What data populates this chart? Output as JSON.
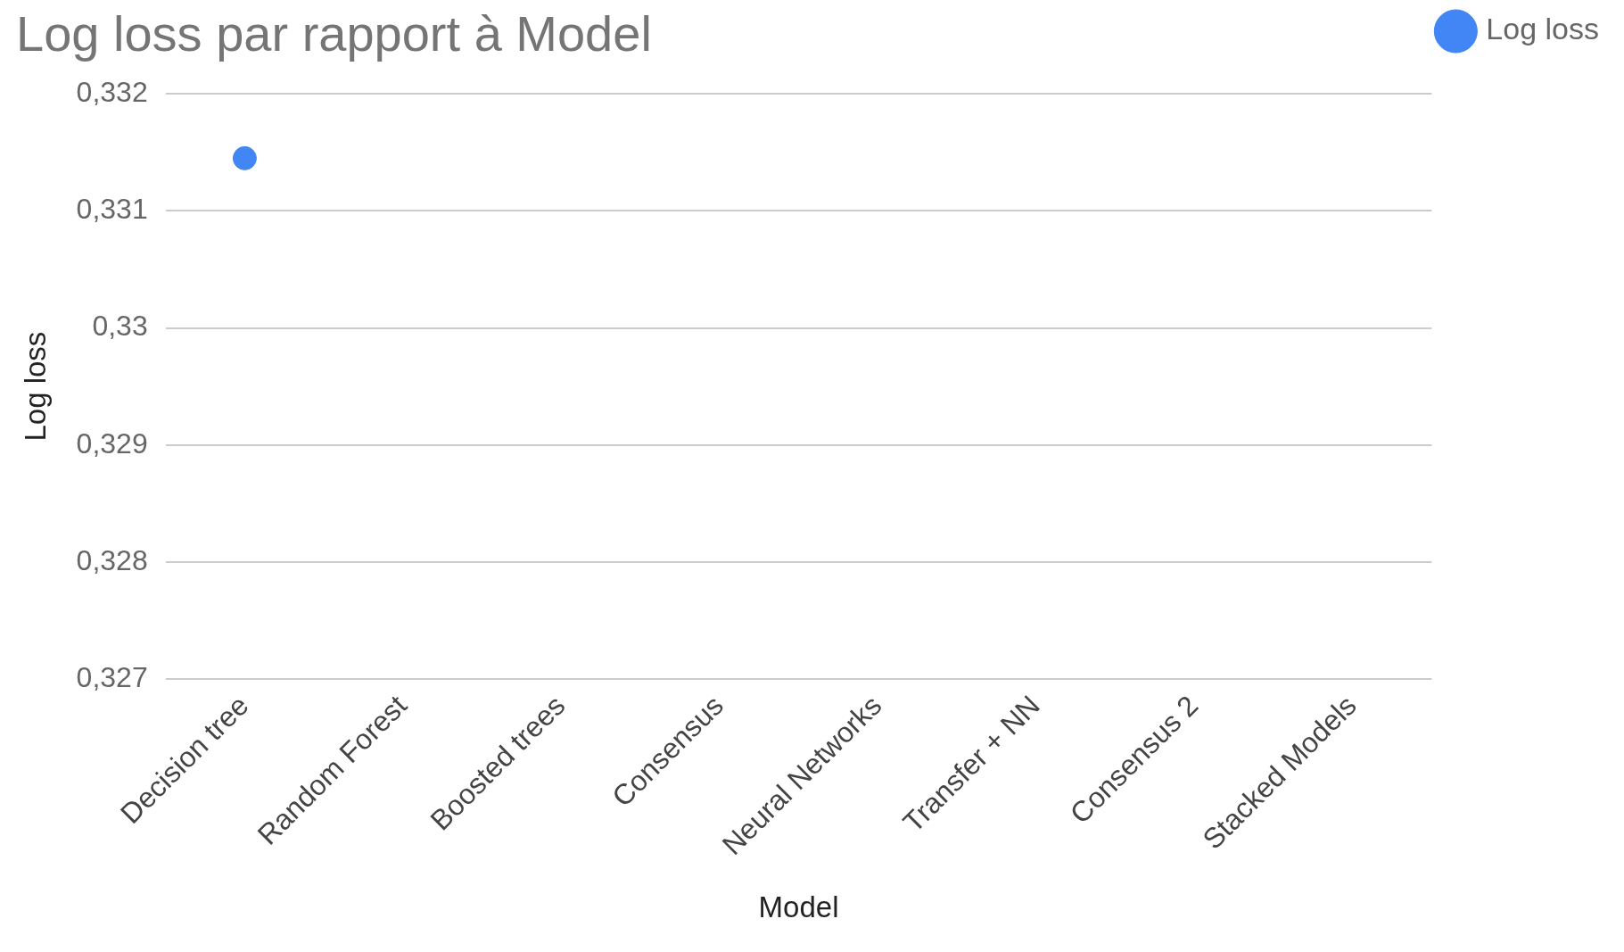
{
  "chart_data": {
    "type": "scatter",
    "title": "Log loss par rapport à Model",
    "xlabel": "Model",
    "ylabel": "Log loss",
    "categories": [
      "Decision tree",
      "Random Forest",
      "Boosted trees",
      "Consensus",
      "Neural Networks",
      "Transfer + NN",
      "Consensus 2",
      "Stacked Models"
    ],
    "series": [
      {
        "name": "Log loss",
        "color": "#4285f4",
        "values": [
          0.33145,
          null,
          null,
          null,
          null,
          null,
          null,
          null
        ]
      }
    ],
    "ylim": [
      0.327,
      0.332
    ],
    "yticks": [
      {
        "value": 0.327,
        "label": "0,327"
      },
      {
        "value": 0.328,
        "label": "0,328"
      },
      {
        "value": 0.329,
        "label": "0,329"
      },
      {
        "value": 0.33,
        "label": "0,33"
      },
      {
        "value": 0.331,
        "label": "0,331"
      },
      {
        "value": 0.332,
        "label": "0,332"
      }
    ],
    "grid": "y",
    "legend": "right",
    "marker": "circle"
  }
}
